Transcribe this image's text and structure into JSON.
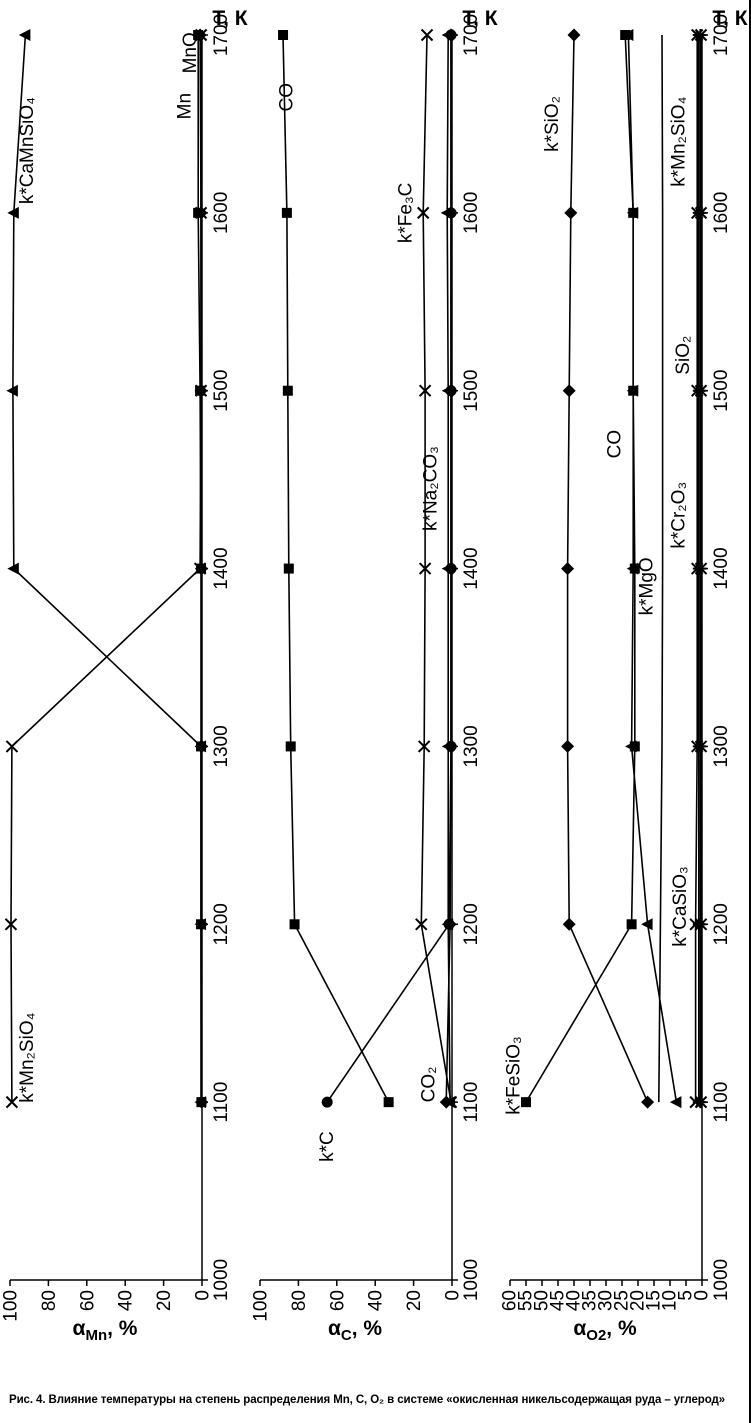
{
  "caption": "Рис. 4. Влияние температуры на степень распределения Mn, C, O₂ в системе «окисленная никельсодержащая руда – углерод»",
  "chart_data": [
    {
      "type": "line",
      "title": "",
      "xlabel": "Т, К",
      "ylabel": {
        "base": "α",
        "sub": "Mn",
        "rest": ", %"
      },
      "xlim": [
        1000,
        1700
      ],
      "xticks": [
        1000,
        1100,
        1200,
        1300,
        1400,
        1500,
        1600,
        1700
      ],
      "ylim": [
        0,
        100
      ],
      "yticks": [
        0,
        20,
        40,
        60,
        80,
        100
      ],
      "ytick_font": 19,
      "grid": false,
      "legend": "labels-on-plot",
      "x": [
        1100,
        1200,
        1300,
        1400,
        1500,
        1600,
        1700
      ],
      "series": [
        {
          "name": "k*Mn2SiO4",
          "label": "k*Mn₂SiO₄",
          "marker": "x",
          "values": [
            99,
            99.5,
            99,
            1,
            0.5,
            0.5,
            0.5
          ],
          "label_pos": {
            "t": 1125,
            "a": 88
          }
        },
        {
          "name": "k*CaMnSiO4",
          "label": "k*CaMnSiO₄",
          "marker": "triangle",
          "values": [
            0.5,
            0.5,
            0.5,
            98,
            98.5,
            98,
            92
          ],
          "label_pos": {
            "t": 1635,
            "a": 88
          }
        },
        {
          "name": "Mn",
          "label": "Mn",
          "marker": "square",
          "values": [
            0.3,
            0.5,
            0.5,
            0.5,
            1,
            2,
            2
          ],
          "label_pos": {
            "t": 1660,
            "a": 6
          }
        },
        {
          "name": "MnO",
          "label": "MnO",
          "marker": "diamond",
          "values": [
            0.2,
            0.3,
            0.3,
            0.3,
            0.5,
            0.5,
            1
          ],
          "label_pos": {
            "t": 1690,
            "a": 3
          }
        }
      ]
    },
    {
      "type": "line",
      "title": "",
      "xlabel": "Т, К",
      "ylabel": {
        "base": "α",
        "sub": "C",
        "rest": ", %"
      },
      "xlim": [
        1000,
        1700
      ],
      "xticks": [
        1000,
        1100,
        1200,
        1300,
        1400,
        1500,
        1600,
        1700
      ],
      "ylim": [
        0,
        100
      ],
      "yticks": [
        0,
        20,
        40,
        60,
        80,
        100
      ],
      "ytick_font": 19,
      "grid": false,
      "legend": "labels-on-plot",
      "x": [
        1100,
        1200,
        1300,
        1400,
        1500,
        1600,
        1700
      ],
      "series": [
        {
          "name": "CO",
          "label": "CO",
          "marker": "square",
          "values": [
            33,
            82,
            84,
            85,
            85.5,
            86,
            88
          ],
          "label_pos": {
            "t": 1665,
            "a": 83
          }
        },
        {
          "name": "k*C",
          "label": "k*C",
          "marker": "circle",
          "values": [
            65,
            1.5,
            0.5,
            0.5,
            0.5,
            0.5,
            0.5
          ],
          "label_pos": {
            "t": 1075,
            "a": 62
          }
        },
        {
          "name": "k*Fe3C",
          "label": "k*Fe₃C",
          "marker": "x",
          "values": [
            0.5,
            16,
            14.5,
            14,
            14,
            15,
            13
          ],
          "label_pos": {
            "t": 1600,
            "a": 21
          }
        },
        {
          "name": "k*Na2CO3",
          "label": "k*Na₂CO₃",
          "marker": "triangle",
          "values": [
            1,
            2,
            2,
            2,
            2,
            2.5,
            2
          ],
          "label_pos": {
            "t": 1445,
            "a": 8
          }
        },
        {
          "name": "CO2",
          "label": "CO₂",
          "marker": "diamond",
          "values": [
            3,
            1,
            0.5,
            0.5,
            0.5,
            0.5,
            0.5
          ],
          "label_pos": {
            "t": 1110,
            "a": 9
          }
        }
      ]
    },
    {
      "type": "line",
      "title": "",
      "xlabel": "Т, К",
      "ylabel": {
        "base": "α",
        "sub": "O2",
        "rest": ", %"
      },
      "xlim": [
        1000,
        1700
      ],
      "xticks": [
        1000,
        1100,
        1200,
        1300,
        1400,
        1500,
        1600,
        1700
      ],
      "ylim": [
        0,
        60
      ],
      "yticks": [
        0,
        5,
        10,
        15,
        20,
        25,
        30,
        35,
        40,
        45,
        50,
        55,
        60
      ],
      "ytick_font": 16,
      "grid": false,
      "legend": "labels-on-plot",
      "x": [
        1100,
        1200,
        1300,
        1400,
        1500,
        1600,
        1700
      ],
      "series": [
        {
          "name": "k*FeSiO3",
          "label": "k*FeSiO₃",
          "marker": "square",
          "values": [
            55,
            22,
            21,
            21,
            21.5,
            21.5,
            24
          ],
          "label_pos": {
            "t": 1115,
            "a": 57
          }
        },
        {
          "name": "k*SiO2",
          "label": "k*SiO₂",
          "marker": "diamond",
          "values": [
            17,
            41.5,
            42,
            42,
            41.5,
            41,
            40
          ],
          "label_pos": {
            "t": 1650,
            "a": 45
          }
        },
        {
          "name": "CO",
          "label": "CO",
          "marker": "triangle",
          "values": [
            8,
            17,
            22,
            21.5,
            21.5,
            21.5,
            23
          ],
          "label_pos": {
            "t": 1470,
            "a": 25.5
          }
        },
        {
          "name": "k*MgO",
          "label": "k*MgO",
          "marker": "none",
          "values": [
            13.5,
            13,
            12.5,
            12.3,
            12.3,
            12.3,
            12.5
          ],
          "label_pos": {
            "t": 1390,
            "a": 15.5
          }
        },
        {
          "name": "k*CaSiO3",
          "label": "k*CaSiO₃",
          "marker": "x",
          "values": [
            2,
            2,
            1.5,
            1.5,
            1.5,
            1.5,
            1.5
          ],
          "label_pos": {
            "t": 1210,
            "a": 5
          }
        },
        {
          "name": "k*Cr2O3",
          "label": "k*Cr₂O₃",
          "marker": "star",
          "values": [
            1,
            1,
            1,
            1,
            1,
            1,
            1
          ],
          "label_pos": {
            "t": 1430,
            "a": 5.5
          }
        },
        {
          "name": "SiO2",
          "label": "SiO₂",
          "marker": "plus",
          "values": [
            0.5,
            0.5,
            0.5,
            0.5,
            0.5,
            0.5,
            0.5
          ],
          "label_pos": {
            "t": 1520,
            "a": 4
          }
        },
        {
          "name": "k*Mn2SiO4",
          "label": "k*Mn₂SiO₄",
          "marker": "x",
          "values": [
            0.3,
            0.3,
            0.3,
            0.3,
            0.3,
            0.3,
            0.3
          ],
          "label_pos": {
            "t": 1640,
            "a": 5.5
          }
        }
      ]
    }
  ]
}
